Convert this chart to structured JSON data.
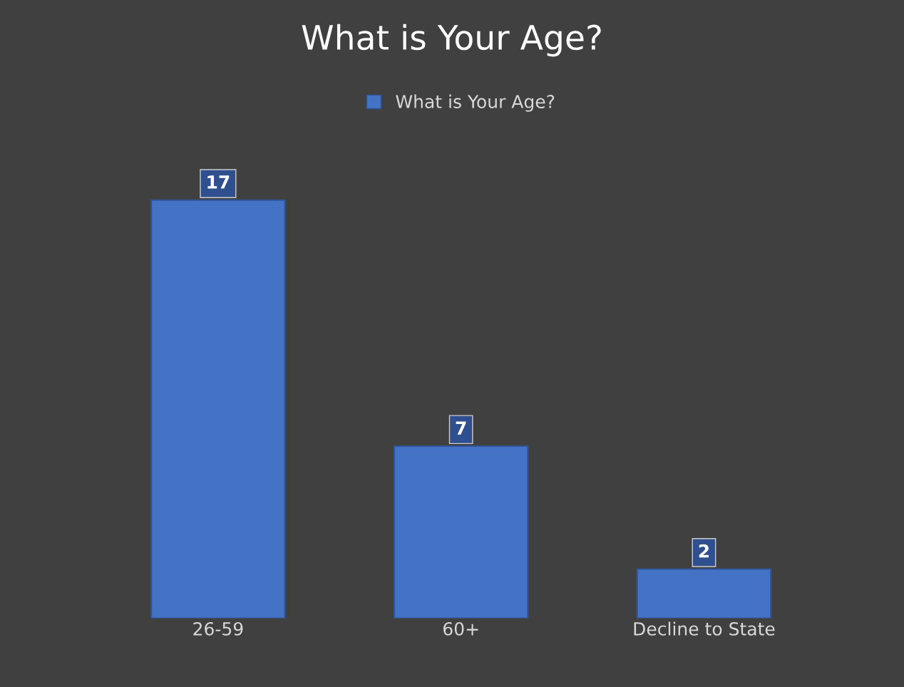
{
  "chart_data": {
    "type": "bar",
    "title": "What is Your Age?",
    "categories": [
      "26-59",
      "60+",
      "Decline to State"
    ],
    "series": [
      {
        "name": "What is Your Age?",
        "color": "#4472c4",
        "values": [
          17,
          7,
          2
        ]
      }
    ],
    "data_labels": true,
    "legend": "top",
    "grid": false,
    "tick_labels": "x"
  }
}
